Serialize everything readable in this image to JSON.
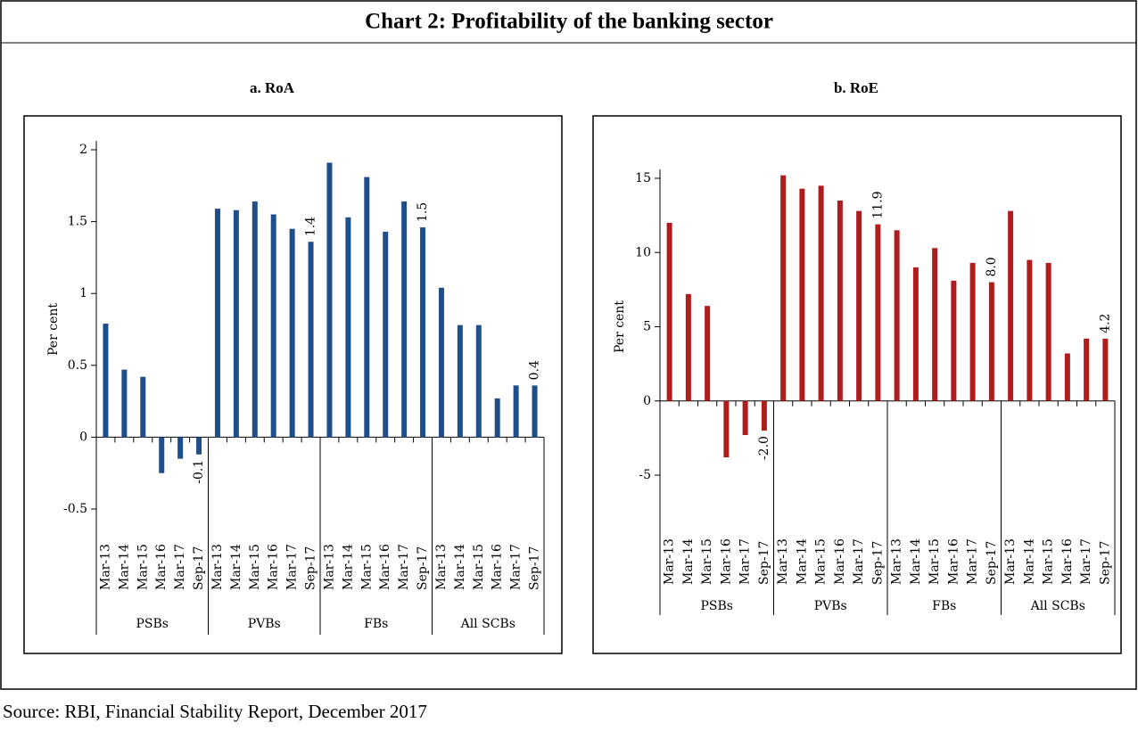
{
  "header": {
    "title": "Chart 2: Profitability of the banking sector"
  },
  "source": "Source: RBI, Financial Stability Report, December 2017",
  "chart_data": [
    {
      "type": "bar",
      "title": "a. RoA",
      "y_label": "Per cent",
      "color": "#1f4e8c",
      "categories": [
        "Mar-13",
        "Mar-14",
        "Mar-15",
        "Mar-16",
        "Mar-17",
        "Sep-17",
        "Mar-13",
        "Mar-14",
        "Mar-15",
        "Mar-16",
        "Mar-17",
        "Sep-17",
        "Mar-13",
        "Mar-14",
        "Mar-15",
        "Mar-16",
        "Mar-17",
        "Sep-17",
        "Mar-13",
        "Mar-14",
        "Mar-15",
        "Mar-16",
        "Mar-17",
        "Sep-17"
      ],
      "groups": [
        "PSBs",
        "PVBs",
        "FBs",
        "All SCBs"
      ],
      "values": [
        0.79,
        0.47,
        0.42,
        -0.25,
        -0.15,
        -0.12,
        1.59,
        1.58,
        1.64,
        1.55,
        1.45,
        1.36,
        1.91,
        1.53,
        1.81,
        1.43,
        1.64,
        1.46,
        1.04,
        0.78,
        0.78,
        0.27,
        0.36,
        0.36
      ],
      "value_labels": [
        null,
        null,
        null,
        null,
        null,
        "-0.1",
        null,
        null,
        null,
        null,
        null,
        "1.4",
        null,
        null,
        null,
        null,
        null,
        "1.5",
        null,
        null,
        null,
        null,
        null,
        "0.4"
      ],
      "ylim": [
        -0.5,
        2
      ],
      "yticks": [
        -0.5,
        0,
        0.5,
        1,
        1.5,
        2
      ],
      "grid": false
    },
    {
      "type": "bar",
      "title": "b. RoE",
      "y_label": "Per cent",
      "color": "#b01c1c",
      "categories": [
        "Mar-13",
        "Mar-14",
        "Mar-15",
        "Mar-16",
        "Mar-17",
        "Sep-17",
        "Mar-13",
        "Mar-14",
        "Mar-15",
        "Mar-16",
        "Mar-17",
        "Sep-17",
        "Mar-13",
        "Mar-14",
        "Mar-15",
        "Mar-16",
        "Mar-17",
        "Sep-17",
        "Mar-13",
        "Mar-14",
        "Mar-15",
        "Mar-16",
        "Mar-17",
        "Sep-17"
      ],
      "groups": [
        "PSBs",
        "PVBs",
        "FBs",
        "All SCBs"
      ],
      "values": [
        12.0,
        7.2,
        6.4,
        -3.8,
        -2.3,
        -2.0,
        15.2,
        14.3,
        14.5,
        13.5,
        12.8,
        11.9,
        11.5,
        9.0,
        10.3,
        8.1,
        9.3,
        8.0,
        12.8,
        9.5,
        9.3,
        3.2,
        4.2,
        4.2
      ],
      "value_labels": [
        null,
        null,
        null,
        null,
        null,
        "-2.0",
        null,
        null,
        null,
        null,
        null,
        "11.9",
        null,
        null,
        null,
        null,
        null,
        "8.0",
        null,
        null,
        null,
        null,
        null,
        "4.2"
      ],
      "ylim": [
        -5,
        15
      ],
      "yticks": [
        -5,
        0,
        5,
        10,
        15
      ],
      "grid": false
    }
  ]
}
